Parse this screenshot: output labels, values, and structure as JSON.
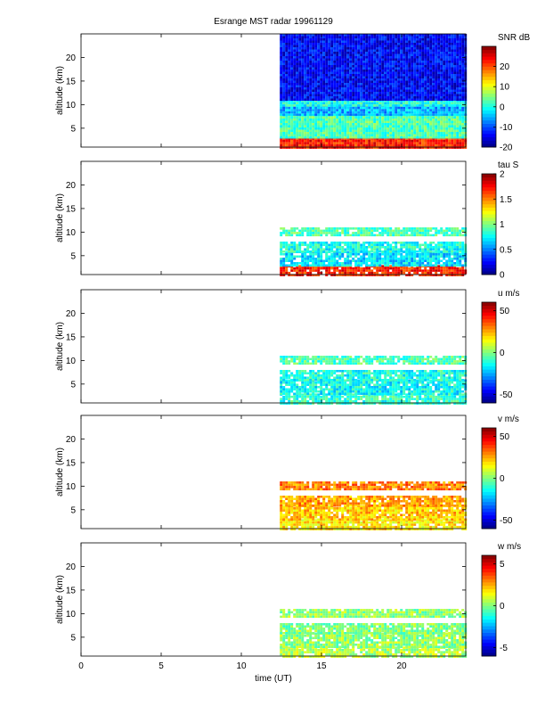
{
  "chart_data": {
    "type": "heatmap",
    "title": "Esrange MST radar 19961129",
    "xlabel": "time (UT)",
    "xlim": [
      0,
      24
    ],
    "xticks": [
      0,
      5,
      10,
      15,
      20
    ],
    "data_start_time": 12.4,
    "shared_x_axis": true,
    "colormap": "jet",
    "panels": [
      {
        "id": "snr",
        "ylabel": "altitude (km)",
        "ylim": [
          1,
          25
        ],
        "yticks": [
          5,
          10,
          15,
          20
        ],
        "colorbar_label": "SNR dB",
        "clim": [
          -20,
          30
        ],
        "colorbar_ticks": [
          -20,
          -10,
          0,
          10,
          20
        ],
        "layers": [
          {
            "alt": [
              0,
              3
            ],
            "level": 0.85
          },
          {
            "alt": [
              3,
              8
            ],
            "level": 0.45
          },
          {
            "alt": [
              8,
              10
            ],
            "level": 0.3
          },
          {
            "alt": [
              10,
              11
            ],
            "level": 0.4
          },
          {
            "alt": [
              11,
              25
            ],
            "level": 0.12
          }
        ]
      },
      {
        "id": "tau",
        "ylabel": "altitude (km)",
        "ylim": [
          1,
          25
        ],
        "yticks": [
          5,
          10,
          15,
          20
        ],
        "colorbar_label": "tau S",
        "clim": [
          0,
          2
        ],
        "colorbar_ticks": [
          0,
          0.5,
          1,
          1.5,
          2
        ],
        "layers": [
          {
            "alt": [
              1,
              3
            ],
            "level": 0.85
          },
          {
            "alt": [
              3,
              6
            ],
            "level": 0.35
          },
          {
            "alt": [
              6,
              8
            ],
            "level": 0.4
          },
          {
            "alt": [
              9.5,
              11
            ],
            "level": 0.45
          }
        ]
      },
      {
        "id": "u",
        "ylabel": "altitude (km)",
        "ylim": [
          1,
          25
        ],
        "yticks": [
          5,
          10,
          15,
          20
        ],
        "colorbar_label": "u m/s",
        "clim": [
          -60,
          60
        ],
        "colorbar_ticks": [
          -50,
          0,
          50
        ],
        "layers": [
          {
            "alt": [
              1,
              3
            ],
            "level": 0.42
          },
          {
            "alt": [
              3,
              6
            ],
            "level": 0.38
          },
          {
            "alt": [
              6,
              8
            ],
            "level": 0.4
          },
          {
            "alt": [
              9.5,
              11
            ],
            "level": 0.45
          }
        ]
      },
      {
        "id": "v",
        "ylabel": "altitude (km)",
        "ylim": [
          1,
          25
        ],
        "yticks": [
          5,
          10,
          15,
          20
        ],
        "colorbar_label": "v m/s",
        "clim": [
          -60,
          60
        ],
        "colorbar_ticks": [
          -50,
          0,
          50
        ],
        "layers": [
          {
            "alt": [
              1,
              3
            ],
            "level": 0.65
          },
          {
            "alt": [
              3,
              6
            ],
            "level": 0.68
          },
          {
            "alt": [
              6,
              8
            ],
            "level": 0.72
          },
          {
            "alt": [
              9.5,
              11
            ],
            "level": 0.75
          }
        ]
      },
      {
        "id": "w",
        "ylabel": "altitude (km)",
        "ylim": [
          1,
          25
        ],
        "yticks": [
          5,
          10,
          15,
          20
        ],
        "colorbar_label": "w m/s",
        "clim": [
          -6,
          6
        ],
        "colorbar_ticks": [
          -5,
          0,
          5
        ],
        "layers": [
          {
            "alt": [
              1,
              3
            ],
            "level": 0.55
          },
          {
            "alt": [
              3,
              6
            ],
            "level": 0.52
          },
          {
            "alt": [
              6,
              8
            ],
            "level": 0.5
          },
          {
            "alt": [
              9.5,
              11
            ],
            "level": 0.52
          }
        ]
      }
    ]
  }
}
